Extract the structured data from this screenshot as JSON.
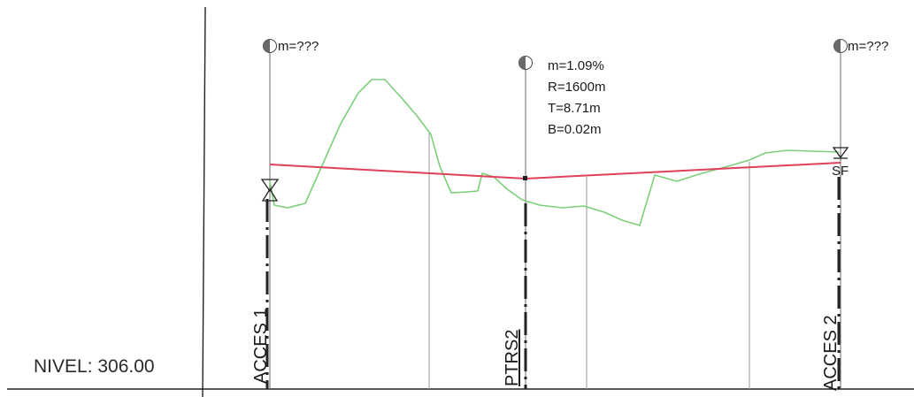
{
  "level_label": "NIVEL: 306.00",
  "curve_left": {
    "slope": "m=???"
  },
  "curve_mid": {
    "slope": "m=1.09%",
    "radius": "R=1600m",
    "tangent": "T=8.71m",
    "bisector": "B=0.02m"
  },
  "curve_right": {
    "slope": "m=???"
  },
  "stations": {
    "left": "ACCES 1",
    "middle": "PTRS2",
    "right": "ACCES 2"
  },
  "end_marker": "SF",
  "colors": {
    "grade_line": "#e0405a",
    "terrain_line": "#7ccf7a",
    "ink": "#1a1a1a",
    "grid": "#9a9a9a"
  }
}
